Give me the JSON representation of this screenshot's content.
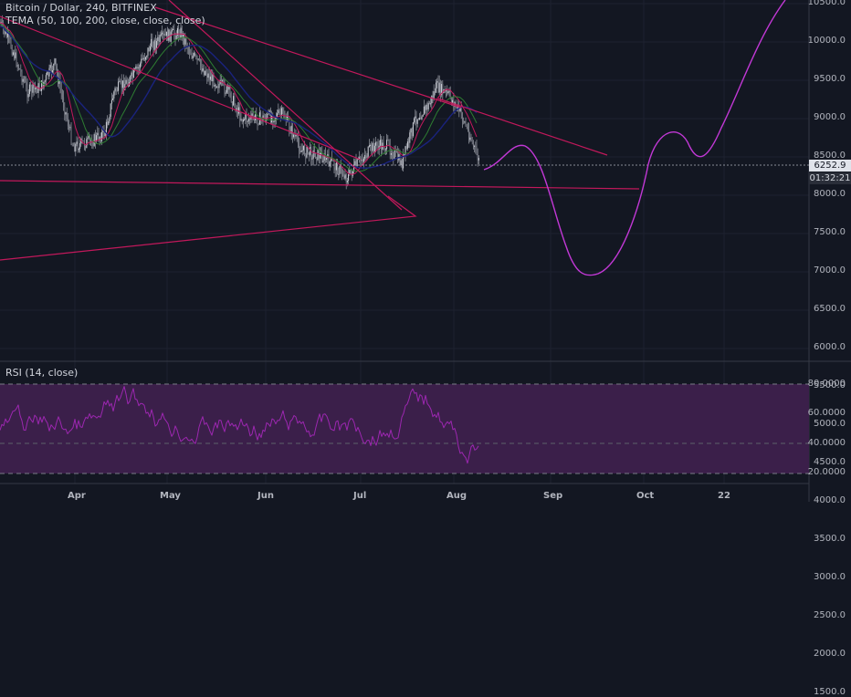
{
  "header": {
    "title": "Bitcoin / Dollar, 240, BITFINEX",
    "indicator": "TEMA (50, 100, 200, close, close, close)"
  },
  "rsi_panel": {
    "title": "RSI (14, close)"
  },
  "price_axis": {
    "ticks": [
      "10500.0",
      "10000.0",
      "9500.0",
      "9000.0",
      "8500.0",
      "8000.0",
      "7500.0",
      "7000.0",
      "6500.0",
      "6000.0",
      "5500.0",
      "5000.0",
      "4500.0",
      "4000.0",
      "3500.0",
      "3000.0",
      "2500.0",
      "2000.0",
      "1500.0"
    ],
    "last_price": "6252.9",
    "countdown": "01:32:21"
  },
  "rsi_axis": {
    "ticks": [
      "80.0000",
      "60.0000",
      "40.0000",
      "20.0000"
    ]
  },
  "time_axis": {
    "ticks": [
      "Apr",
      "May",
      "Jun",
      "Jul",
      "Aug",
      "Sep",
      "Oct",
      "22"
    ]
  },
  "colors": {
    "background": "#131722",
    "trendline": "#c2185b",
    "projection": "#c238d6",
    "rsi": "#9c27b0",
    "rsi_band": "#3b1f4a",
    "candles": "#b2b5be"
  }
}
